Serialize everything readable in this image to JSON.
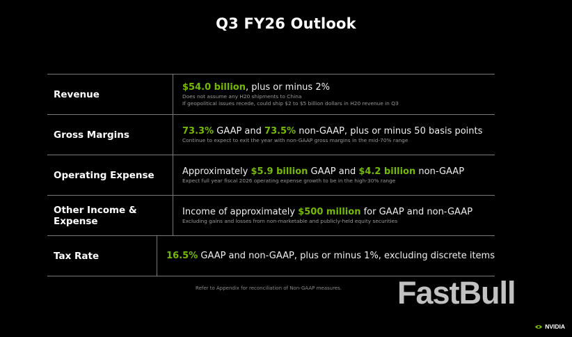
{
  "title": "Q3 FY26 Outlook",
  "rows": [
    {
      "label": "Revenue",
      "parts": [
        {
          "t": "$54.0 billion",
          "hl": true
        },
        {
          "t": ", plus or minus 2%",
          "hl": false
        }
      ],
      "notes": [
        "Does not assume any H20 shipments to China",
        "If geopolitical issues recede, could ship $2 to $5 billion dollars in H20 revenue in Q3"
      ]
    },
    {
      "label": "Gross Margins",
      "parts": [
        {
          "t": "73.3%",
          "hl": true
        },
        {
          "t": " GAAP and ",
          "hl": false
        },
        {
          "t": "73.5%",
          "hl": true
        },
        {
          "t": " non-GAAP, plus or minus 50 basis points",
          "hl": false
        }
      ],
      "notes": [
        "Continue to expect to exit the year with non-GAAP gross margins in the mid-70% range"
      ]
    },
    {
      "label": "Operating Expense",
      "parts": [
        {
          "t": "Approximately ",
          "hl": false
        },
        {
          "t": "$5.9 billion",
          "hl": true
        },
        {
          "t": " GAAP and ",
          "hl": false
        },
        {
          "t": "$4.2 billion",
          "hl": true
        },
        {
          "t": " non-GAAP",
          "hl": false
        }
      ],
      "notes": [
        "Expect full year fiscal 2026 operating expense growth to be in the high-30% range"
      ]
    },
    {
      "label": "Other Income & Expense",
      "parts": [
        {
          "t": "Income of approximately ",
          "hl": false
        },
        {
          "t": "$500 million",
          "hl": true
        },
        {
          "t": " for GAAP and non-GAAP",
          "hl": false
        }
      ],
      "notes": [
        "Excluding gains and losses from non-marketable and publicly-held equity securities"
      ]
    },
    {
      "label": "Tax Rate",
      "parts": [
        {
          "t": "16.5%",
          "hl": true
        },
        {
          "t": " GAAP and non-GAAP, plus or minus 1%, excluding discrete items",
          "hl": false
        }
      ],
      "notes": []
    }
  ],
  "footnote": "Refer to Appendix for reconciliation of Non-GAAP measures.",
  "watermark": "FastBull",
  "brand": "NVIDIA",
  "colors": {
    "background": "#000000",
    "highlight": "#76b900",
    "text": "#ffffff",
    "note": "#9a9a9a",
    "rule": "#7a7a7a"
  },
  "icons": {
    "brand_logo": "nvidia-eye-icon"
  }
}
